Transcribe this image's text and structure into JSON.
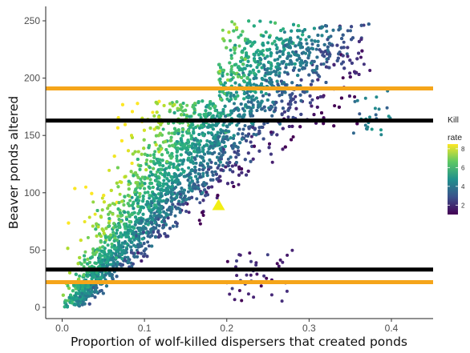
{
  "chart_data": {
    "type": "scatter",
    "title": "",
    "xlabel": "Proportion of wolf-killed dispersers that created ponds",
    "ylabel": "Beaver ponds altered",
    "xlim": [
      -0.03,
      0.45
    ],
    "ylim": [
      -4,
      262
    ],
    "x_ticks": [
      0.0,
      0.1,
      0.2,
      0.3,
      0.4
    ],
    "x_tick_labels": [
      "0.0",
      "0.1",
      "0.2",
      "0.3",
      "0.4"
    ],
    "y_ticks": [
      0,
      50,
      100,
      150,
      200,
      250
    ],
    "y_tick_labels": [
      "0",
      "50",
      "100",
      "150",
      "200",
      "250"
    ],
    "grid": false,
    "color_scale": {
      "title": [
        "Kill",
        "rate"
      ],
      "palette": "viridis",
      "range": [
        1,
        8.5
      ],
      "ticks": [
        2,
        4,
        6,
        8
      ],
      "tick_labels": [
        "2",
        "4",
        "6",
        "8"
      ],
      "placement": "right"
    },
    "scatter_cloud": {
      "n_points": 6000,
      "x_range": [
        0.0,
        0.38
      ],
      "y_range": [
        0,
        250
      ],
      "description_of_trend": "positive; higher y at given x has higher kill rate"
    },
    "reference_lines": [
      {
        "y": 191,
        "color": "#f5a51a"
      },
      {
        "y": 163,
        "color": "#000000"
      },
      {
        "y": 33,
        "color": "#000000"
      },
      {
        "y": 22,
        "color": "#f5a51a"
      }
    ],
    "marker": {
      "shape": "triangle",
      "x": 0.19,
      "y": 89,
      "color": "#f2ee14"
    }
  }
}
